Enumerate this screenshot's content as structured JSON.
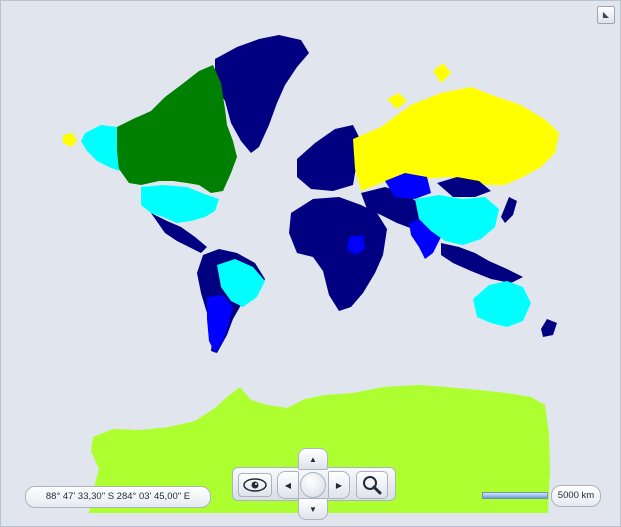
{
  "map": {
    "coordinates_text": "88° 47' 33,30\" S 284° 03' 45,00\" E",
    "scale_label": "5000 km",
    "colors": {
      "background": "#e1e6ee",
      "green": "#008000",
      "navy": "#000080",
      "cyan": "#00ffff",
      "yellow": "#ffff00",
      "blue": "#0000ff",
      "lime": "#adff2f"
    }
  },
  "icons": {
    "corner": "fullscreen-icon",
    "eye": "eye-icon",
    "search": "magnifier-icon",
    "up": "arrow-up-icon",
    "down": "arrow-down-icon",
    "left": "arrow-left-icon",
    "right": "arrow-right-icon"
  }
}
